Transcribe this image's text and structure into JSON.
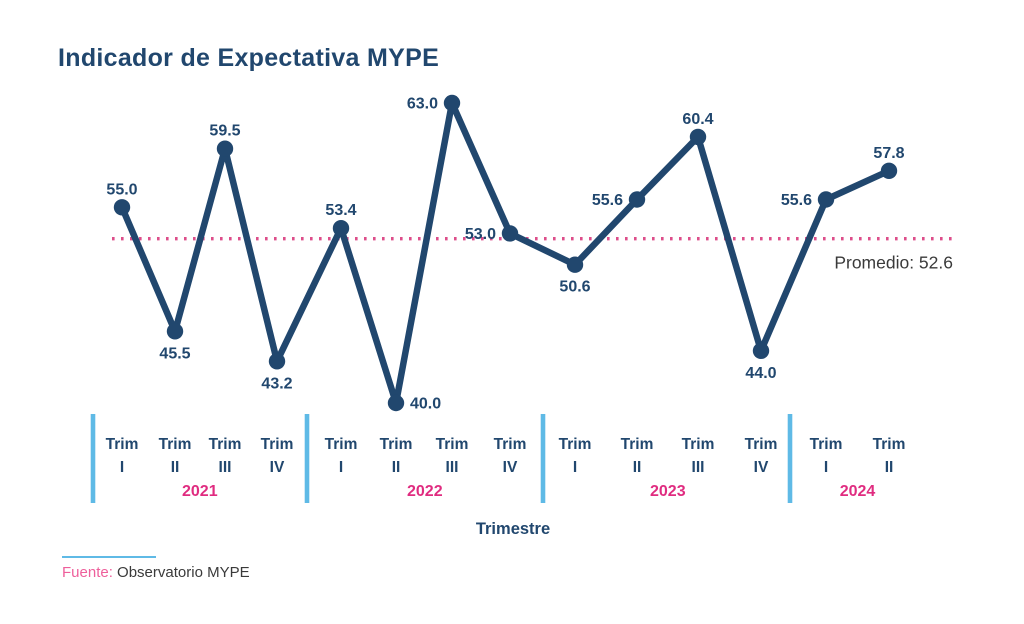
{
  "page": {
    "title": "Indicador de Expectativa MYPE",
    "source_prefix": "Fuente:",
    "source_name": "Observatorio MYPE"
  },
  "colors": {
    "navy": "#21476E",
    "pink": "#E02C80",
    "pink_dotted": "#DD4E8A",
    "light_blue": "#5FBAE6",
    "dark_text": "#3A3A3A"
  },
  "chart_data": {
    "type": "line",
    "title": "Indicador de Expectativa MYPE",
    "xlabel": "Trimestre",
    "ylabel": "",
    "ylim": [
      40,
      63
    ],
    "grid": false,
    "legend": false,
    "average": 52.6,
    "average_label": "Promedio: 52.6",
    "categories": [
      "Trim I",
      "Trim II",
      "Trim III",
      "Trim IV",
      "Trim I",
      "Trim II",
      "Trim III",
      "Trim IV",
      "Trim I",
      "Trim II",
      "Trim III",
      "Trim IV",
      "Trim I",
      "Trim II"
    ],
    "years": [
      "2021",
      "2021",
      "2021",
      "2021",
      "2022",
      "2022",
      "2022",
      "2022",
      "2023",
      "2023",
      "2023",
      "2023",
      "2024",
      "2024"
    ],
    "values": [
      55.0,
      45.5,
      59.5,
      43.2,
      53.4,
      40.0,
      63.0,
      53.0,
      50.6,
      55.6,
      60.4,
      44.0,
      55.6,
      57.8
    ],
    "value_labels": [
      "55.0",
      "45.5",
      "59.5",
      "43.2",
      "53.4",
      "40.0",
      "63.0",
      "53.0",
      "50.6",
      "55.6",
      "60.4",
      "44.0",
      "55.6",
      "57.8"
    ],
    "label_positions": [
      "above",
      "below",
      "above",
      "below",
      "above",
      "right",
      "left",
      "left",
      "below",
      "left",
      "above",
      "below",
      "left",
      "above"
    ]
  }
}
